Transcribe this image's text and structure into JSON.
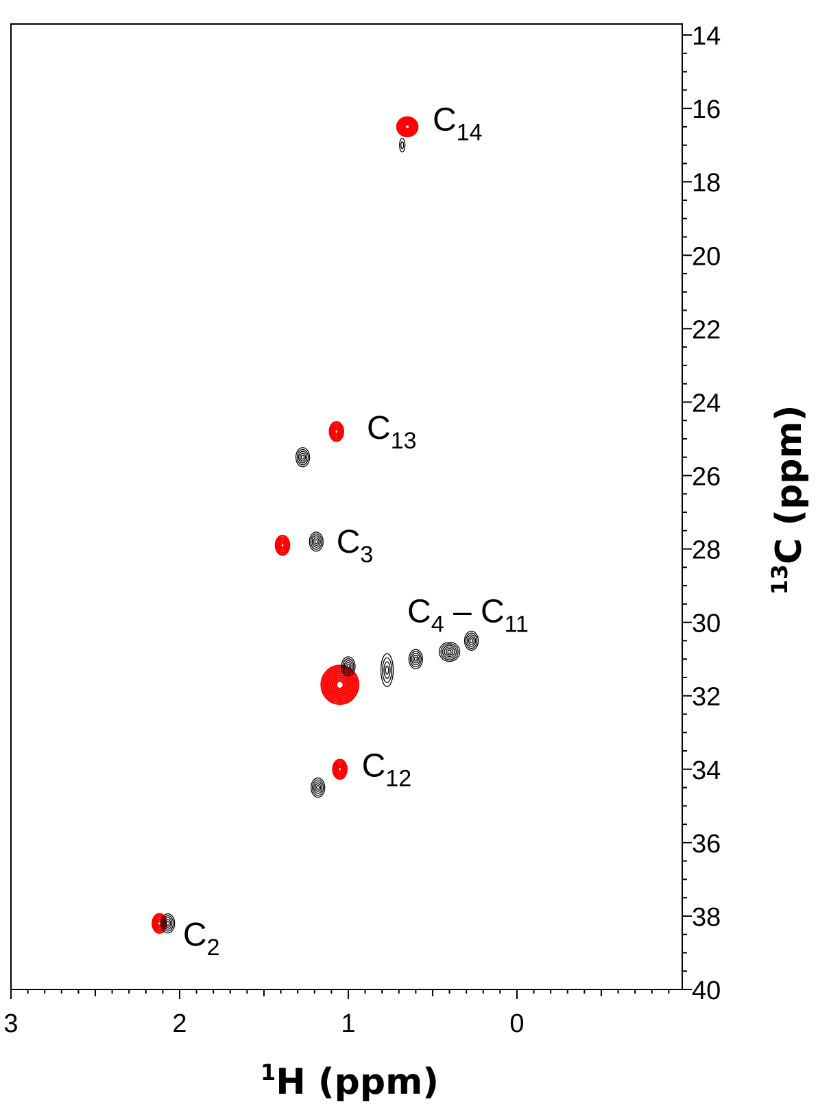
{
  "chart_data": {
    "type": "scatter",
    "title": "",
    "xlabel": {
      "sup": "1",
      "main": "H (ppm)"
    },
    "ylabel": {
      "sup": "13",
      "main": "C (ppm)"
    },
    "x_axis": {
      "reversed": true,
      "range": [
        3.0,
        -0.98
      ],
      "ticks": [
        3,
        2,
        1,
        0
      ],
      "tick_labels": [
        "3",
        "2",
        "1",
        "0"
      ]
    },
    "y_axis": {
      "reversed": true,
      "range": [
        13.7,
        40
      ],
      "ticks": [
        14,
        16,
        18,
        20,
        22,
        24,
        26,
        28,
        30,
        32,
        34,
        36,
        38,
        40
      ],
      "tick_labels": [
        "14",
        "16",
        "18",
        "20",
        "22",
        "24",
        "26",
        "28",
        "30",
        "32",
        "34",
        "36",
        "38",
        "40"
      ],
      "position": "right"
    },
    "grid": false,
    "series": [
      {
        "color": "#ff0000",
        "points": [
          {
            "x": 0.65,
            "y": 16.5,
            "size": "medium"
          },
          {
            "x": 1.07,
            "y": 24.8,
            "size": "small"
          },
          {
            "x": 1.39,
            "y": 27.9,
            "size": "small"
          },
          {
            "x": 1.05,
            "y": 31.7,
            "size": "large"
          },
          {
            "x": 1.05,
            "y": 34.0,
            "size": "small"
          },
          {
            "x": 2.12,
            "y": 38.2,
            "size": "small"
          }
        ]
      },
      {
        "color": "#000000",
        "points": [
          {
            "x": 0.68,
            "y": 17.0,
            "size": "tiny"
          },
          {
            "x": 1.27,
            "y": 25.5,
            "size": "small"
          },
          {
            "x": 1.19,
            "y": 27.8,
            "size": "small"
          },
          {
            "x": 1.0,
            "y": 31.2,
            "size": "small"
          },
          {
            "x": 0.77,
            "y": 31.3,
            "size": "irregular"
          },
          {
            "x": 0.6,
            "y": 31.0,
            "size": "small"
          },
          {
            "x": 0.4,
            "y": 30.8,
            "size": "medium"
          },
          {
            "x": 0.27,
            "y": 30.5,
            "size": "small"
          },
          {
            "x": 1.18,
            "y": 34.5,
            "size": "small"
          },
          {
            "x": 2.07,
            "y": 38.2,
            "size": "small"
          }
        ]
      }
    ],
    "annotations": [
      {
        "base": "C",
        "sub": "14",
        "x": 0.5,
        "y": 16.6
      },
      {
        "base": "C",
        "sub": "13",
        "x": 0.89,
        "y": 25.0
      },
      {
        "base": "C",
        "sub": "3",
        "x": 1.07,
        "y": 28.1
      },
      {
        "base": "C",
        "sub": "4",
        "mid": " – C",
        "sub2": "11",
        "x": 0.65,
        "y": 30.0
      },
      {
        "base": "C",
        "sub": "12",
        "x": 0.92,
        "y": 34.2
      },
      {
        "base": "C",
        "sub": "2",
        "x": 1.98,
        "y": 38.8
      }
    ]
  }
}
